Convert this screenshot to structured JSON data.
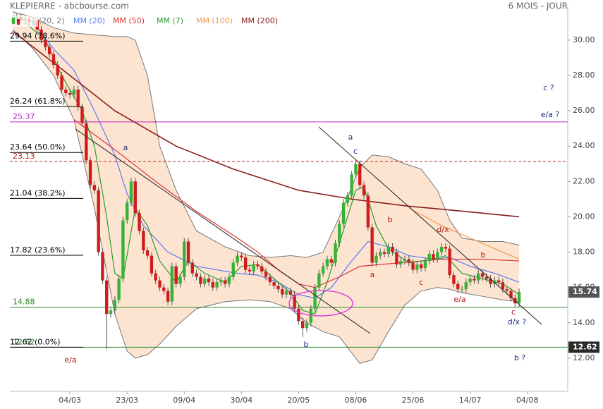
{
  "chart_data": {
    "type": "candlestick",
    "title": "KLEPIERRE - abcbourse.com",
    "period": "6 MOIS - JOUR",
    "xlim": [
      -0.7,
      135.9
    ],
    "ylim": [
      10.12,
      31.87
    ],
    "xticks": [
      {
        "value": 14,
        "label": "04/03"
      },
      {
        "value": 28,
        "label": "23/03"
      },
      {
        "value": 42,
        "label": "09/04"
      },
      {
        "value": 56,
        "label": "30/04"
      },
      {
        "value": 70,
        "label": "20/05"
      },
      {
        "value": 84,
        "label": "08/06"
      },
      {
        "value": 98,
        "label": "25/06"
      },
      {
        "value": 112,
        "label": "14/07"
      },
      {
        "value": 126,
        "label": "04/08"
      }
    ],
    "yticks": [
      {
        "value": 12,
        "label": "12.00"
      },
      {
        "value": 14,
        "label": "14.00"
      },
      {
        "value": 16,
        "label": "16.00"
      },
      {
        "value": 18,
        "label": "18.00"
      },
      {
        "value": 20,
        "label": "20.00"
      },
      {
        "value": 22,
        "label": "22.00"
      },
      {
        "value": 24,
        "label": "24.00"
      },
      {
        "value": 26,
        "label": "26.00"
      },
      {
        "value": 28,
        "label": "28.00"
      },
      {
        "value": 30,
        "label": "30.00"
      }
    ],
    "up_color": "#36b336",
    "down_color": "#d01c1c",
    "ohlc": {
      "open": [
        31.0,
        31.2,
        31.3,
        31.1,
        31.2,
        31.0,
        31.1,
        30.6,
        30.0,
        29.6,
        29.2,
        28.6,
        28.0,
        27.2,
        27.0,
        26.9,
        27.2,
        26.2,
        25.3,
        23.2,
        21.8,
        21.5,
        18.0,
        16.4,
        14.5,
        14.7,
        15.3,
        16.5,
        19.8,
        20.8,
        22.0,
        20.2,
        19.2,
        18.1,
        17.8,
        16.8,
        16.4,
        16.0,
        15.8,
        15.2,
        17.2,
        16.2,
        16.6,
        18.6,
        17.4,
        16.8,
        16.6,
        16.2,
        16.5,
        16.3,
        16.0,
        16.3,
        16.4,
        16.2,
        16.6,
        17.4,
        17.8,
        17.7,
        17.0,
        16.9,
        17.3,
        17.2,
        16.9,
        16.6,
        16.3,
        16.1,
        15.9,
        15.6,
        15.8,
        15.6,
        14.8,
        14.1,
        13.7,
        14.0,
        14.8,
        16.0,
        16.8,
        17.2,
        17.6,
        17.4,
        18.5,
        19.6,
        20.8,
        21.2,
        22.4,
        23.0,
        21.8,
        21.2,
        19.4,
        17.4,
        17.8,
        18.0,
        17.9,
        18.3,
        18.0,
        17.3,
        17.5,
        17.6,
        17.4,
        17.0,
        17.3,
        17.1,
        17.5,
        17.9,
        17.6,
        18.0,
        18.3,
        18.2,
        16.7,
        16.2,
        15.9,
        15.9,
        16.3,
        16.5,
        16.4,
        16.8,
        16.6,
        16.5,
        16.2,
        16.4,
        16.3,
        15.9,
        15.8,
        15.4,
        15.1
      ],
      "high": [
        31.4,
        31.5,
        31.5,
        31.4,
        31.4,
        31.3,
        31.3,
        30.8,
        30.2,
        29.8,
        29.4,
        28.8,
        28.2,
        27.4,
        27.2,
        27.4,
        27.4,
        26.4,
        25.5,
        23.4,
        22.0,
        21.7,
        18.2,
        16.6,
        14.9,
        15.5,
        16.7,
        20.0,
        21.0,
        22.2,
        22.2,
        20.4,
        19.4,
        18.3,
        18.0,
        17.0,
        16.6,
        16.2,
        16.0,
        17.4,
        17.4,
        16.8,
        18.8,
        18.8,
        17.6,
        17.0,
        16.8,
        16.7,
        16.7,
        16.5,
        16.5,
        16.6,
        16.6,
        16.8,
        17.6,
        18.0,
        18.0,
        17.9,
        17.2,
        17.5,
        17.5,
        17.4,
        17.1,
        16.8,
        16.5,
        16.3,
        16.1,
        16.0,
        16.0,
        15.8,
        15.0,
        14.3,
        14.2,
        15.0,
        16.2,
        17.0,
        17.4,
        17.8,
        17.8,
        18.7,
        19.8,
        21.0,
        21.4,
        22.6,
        23.2,
        23.2,
        22.0,
        21.4,
        19.6,
        18.0,
        18.2,
        18.2,
        18.5,
        18.5,
        18.2,
        17.7,
        17.8,
        17.8,
        17.6,
        17.5,
        17.5,
        17.7,
        18.1,
        18.1,
        18.2,
        18.5,
        18.5,
        18.4,
        16.9,
        16.4,
        16.1,
        16.5,
        16.7,
        16.7,
        17.0,
        17.0,
        16.8,
        16.7,
        16.6,
        16.6,
        16.5,
        16.1,
        16.0,
        15.6,
        15.94
      ],
      "low": [
        30.8,
        31.0,
        30.9,
        30.9,
        30.8,
        30.8,
        30.4,
        29.8,
        29.4,
        29.0,
        28.4,
        27.8,
        27.0,
        26.8,
        26.7,
        26.7,
        26.0,
        25.1,
        23.0,
        21.6,
        21.3,
        17.8,
        16.2,
        12.5,
        14.3,
        14.5,
        15.1,
        16.3,
        19.6,
        20.6,
        20.0,
        19.0,
        17.9,
        17.6,
        16.6,
        16.2,
        15.8,
        15.6,
        15.0,
        15.0,
        16.0,
        16.0,
        16.4,
        17.2,
        16.6,
        16.4,
        16.0,
        16.0,
        16.1,
        15.8,
        15.8,
        16.1,
        16.0,
        16.0,
        16.4,
        17.2,
        17.5,
        16.8,
        16.7,
        16.7,
        17.0,
        16.7,
        16.4,
        16.1,
        15.9,
        15.7,
        15.4,
        15.4,
        15.4,
        14.6,
        13.9,
        13.2,
        13.5,
        13.8,
        14.6,
        15.8,
        16.6,
        17.0,
        17.2,
        17.2,
        18.3,
        19.4,
        20.6,
        21.0,
        22.2,
        21.6,
        21.0,
        19.2,
        17.2,
        17.2,
        17.6,
        17.7,
        17.7,
        17.8,
        17.1,
        17.1,
        17.3,
        17.2,
        16.8,
        16.8,
        16.9,
        16.9,
        17.3,
        17.4,
        17.4,
        17.8,
        18.0,
        16.5,
        16.0,
        15.7,
        15.7,
        15.7,
        16.1,
        16.2,
        16.2,
        16.4,
        16.3,
        16.0,
        16.0,
        16.1,
        15.7,
        15.6,
        15.2,
        14.9,
        14.9
      ],
      "close": [
        31.2,
        31.3,
        31.1,
        31.2,
        31.0,
        31.1,
        30.6,
        30.0,
        29.6,
        29.2,
        28.6,
        28.0,
        27.2,
        27.0,
        26.9,
        27.2,
        26.2,
        25.3,
        23.2,
        21.8,
        21.5,
        18.0,
        16.4,
        14.5,
        14.7,
        15.3,
        16.5,
        19.8,
        20.8,
        22.0,
        20.2,
        19.2,
        18.1,
        17.8,
        16.8,
        16.4,
        16.0,
        15.8,
        15.2,
        17.2,
        16.2,
        16.6,
        18.6,
        17.4,
        16.8,
        16.6,
        16.2,
        16.5,
        16.3,
        16.0,
        16.3,
        16.4,
        16.2,
        16.6,
        17.4,
        17.8,
        17.7,
        17.0,
        16.9,
        17.3,
        17.2,
        16.9,
        16.6,
        16.3,
        16.1,
        15.9,
        15.6,
        15.8,
        15.6,
        14.8,
        14.1,
        13.7,
        14.0,
        14.8,
        16.0,
        16.8,
        17.2,
        17.6,
        17.4,
        18.5,
        19.6,
        20.8,
        21.2,
        22.4,
        23.0,
        21.8,
        21.2,
        19.4,
        17.4,
        17.8,
        18.0,
        17.9,
        18.3,
        18.0,
        17.3,
        17.5,
        17.6,
        17.4,
        17.0,
        17.3,
        17.1,
        17.5,
        17.9,
        17.6,
        18.0,
        18.3,
        18.2,
        16.7,
        16.2,
        15.9,
        15.9,
        16.3,
        16.5,
        16.4,
        16.8,
        16.6,
        16.5,
        16.2,
        16.4,
        16.3,
        15.9,
        15.8,
        15.4,
        15.1,
        15.74
      ]
    },
    "bollinger": {
      "name": "(20, 2)",
      "color": "#777777",
      "fill": "#fde4d1",
      "x": [
        0,
        5,
        10,
        15,
        20,
        25,
        28,
        30,
        33,
        36,
        40,
        45,
        52,
        58,
        63,
        68,
        72,
        76,
        80,
        85,
        88,
        92,
        96,
        100,
        104,
        107,
        110,
        115,
        120,
        124
      ],
      "upper": [
        31.6,
        31.3,
        30.7,
        30.4,
        30.3,
        30.2,
        30.2,
        30.0,
        28.0,
        24.0,
        21.5,
        19.2,
        18.3,
        17.8,
        17.7,
        17.8,
        17.7,
        18.0,
        20.0,
        22.8,
        23.5,
        23.4,
        23.0,
        22.7,
        21.5,
        19.8,
        18.8,
        18.6,
        18.6,
        18.4
      ],
      "lower": [
        30.6,
        29.5,
        28.0,
        25.5,
        20.5,
        14.5,
        12.4,
        12.0,
        12.2,
        12.8,
        13.8,
        14.8,
        15.2,
        15.3,
        15.2,
        14.8,
        14.0,
        13.5,
        13.2,
        11.7,
        11.9,
        13.5,
        15.0,
        15.8,
        16.0,
        15.9,
        15.7,
        15.5,
        15.3,
        15.2
      ]
    },
    "series": [
      {
        "name": "MM (20)",
        "color": "#5a7cf0",
        "x": [
          5,
          10,
          15,
          20,
          25,
          28,
          32,
          38,
          45,
          55,
          60,
          65,
          70,
          74,
          78,
          83,
          87,
          92,
          97,
          103,
          107,
          112,
          118,
          124
        ],
        "values": [
          31.0,
          29.5,
          28.3,
          26.0,
          23.5,
          21.3,
          19.5,
          18.0,
          17.2,
          16.8,
          16.7,
          16.3,
          15.6,
          15.4,
          16.0,
          17.5,
          18.6,
          18.3,
          17.8,
          17.6,
          17.7,
          17.2,
          16.8,
          16.3
        ]
      },
      {
        "name": "MM (50)",
        "color": "#e53030",
        "x": [
          15,
          25,
          35,
          45,
          55,
          60,
          65,
          70,
          74,
          80,
          85,
          95,
          105,
          115,
          124
        ],
        "values": [
          25.5,
          23.8,
          22.0,
          20.3,
          18.8,
          18.0,
          17.0,
          16.2,
          16.0,
          16.6,
          17.2,
          17.4,
          17.6,
          17.6,
          17.5
        ]
      },
      {
        "name": "MM (7)",
        "color": "#2e9b2e",
        "x": [
          3,
          8,
          12,
          17,
          20,
          23,
          25,
          27,
          30,
          33,
          36,
          40,
          43,
          47,
          52,
          56,
          60,
          64,
          68,
          71,
          74,
          77,
          80,
          84,
          86,
          89,
          92,
          97,
          103,
          106,
          110,
          115,
          120,
          124
        ],
        "values": [
          31.0,
          30.0,
          28.0,
          26.0,
          24.0,
          20.0,
          16.8,
          16.5,
          20.5,
          19.5,
          17.5,
          16.3,
          17.5,
          16.8,
          16.3,
          17.2,
          17.3,
          16.5,
          15.7,
          14.7,
          14.5,
          16.3,
          18.5,
          21.5,
          21.7,
          19.5,
          18.2,
          17.4,
          17.6,
          17.8,
          16.8,
          16.5,
          16.2,
          15.6
        ]
      },
      {
        "name": "MM (100)",
        "color": "#f39a4a",
        "x": [
          97,
          105,
          112,
          118,
          124
        ],
        "values": [
          20.5,
          19.5,
          18.8,
          18.2,
          17.6
        ]
      },
      {
        "name": "MM (200)",
        "color": "#8b1c1c",
        "x": [
          0,
          14,
          25,
          40,
          54,
          70,
          83,
          97,
          111,
          124
        ],
        "values": [
          30.5,
          28.0,
          26.0,
          24.0,
          22.7,
          21.5,
          21.0,
          20.6,
          20.3,
          20.0
        ]
      }
    ],
    "levels": [
      {
        "value": 29.94,
        "label": "29.94 (78.6%)",
        "color": "#000000",
        "span": "short",
        "dashed": false
      },
      {
        "value": 26.24,
        "label": "26.24 (61.8%)",
        "color": "#000000",
        "span": "short",
        "dashed": false
      },
      {
        "value": 25.37,
        "label": "25.37",
        "color": "#c020c0",
        "span": "full",
        "dashed": false
      },
      {
        "value": 23.64,
        "label": "23.64 (50.0%)",
        "color": "#000000",
        "span": "short",
        "dashed": false
      },
      {
        "value": 23.13,
        "label": "23.13",
        "color": "#c02020",
        "span": "full",
        "dashed": true
      },
      {
        "value": 21.04,
        "label": "21.04 (38.2%)",
        "color": "#000000",
        "span": "short",
        "dashed": false
      },
      {
        "value": 17.82,
        "label": "17.82 (23.6%)",
        "color": "#000000",
        "span": "short",
        "dashed": false
      },
      {
        "value": 14.88,
        "label": "14.88",
        "color": "#2a8a2a",
        "span": "full",
        "dashed": false
      },
      {
        "value": 12.62,
        "label": "12.62",
        "color": "#2a8a2a",
        "span": "full",
        "dashed": false
      },
      {
        "value": 12.62,
        "label": "12.62 (0.0%)",
        "color": "#000000",
        "span": "short",
        "dashed": false
      }
    ],
    "price_tags": [
      {
        "value": 15.74,
        "label": "15.74",
        "color": "#555555"
      },
      {
        "value": 12.62,
        "label": "12.62",
        "color": "#2b2b2b"
      }
    ],
    "annotations": [
      {
        "text": "a",
        "color": "#1c2a80"
      },
      {
        "text": "a",
        "color": "#1c2a80"
      },
      {
        "text": "c",
        "color": "#1c2a80"
      },
      {
        "text": "b",
        "color": "#b01818"
      },
      {
        "text": "a",
        "color": "#b01818"
      },
      {
        "text": "c",
        "color": "#b01818"
      },
      {
        "text": "d/x",
        "color": "#b01818"
      },
      {
        "text": "b",
        "color": "#b01818"
      },
      {
        "text": "e/a",
        "color": "#b01818"
      },
      {
        "text": "c",
        "color": "#b01818"
      },
      {
        "text": "d/x ?",
        "color": "#1c2a80"
      },
      {
        "text": "b",
        "color": "#1c2a80"
      },
      {
        "text": "e/a",
        "color": "#b01818"
      },
      {
        "text": "b ?",
        "color": "#1c2a80"
      },
      {
        "text": "c ?",
        "color": "#1c2a80"
      },
      {
        "text": "e/a ?",
        "color": "#1c2a80"
      }
    ]
  }
}
